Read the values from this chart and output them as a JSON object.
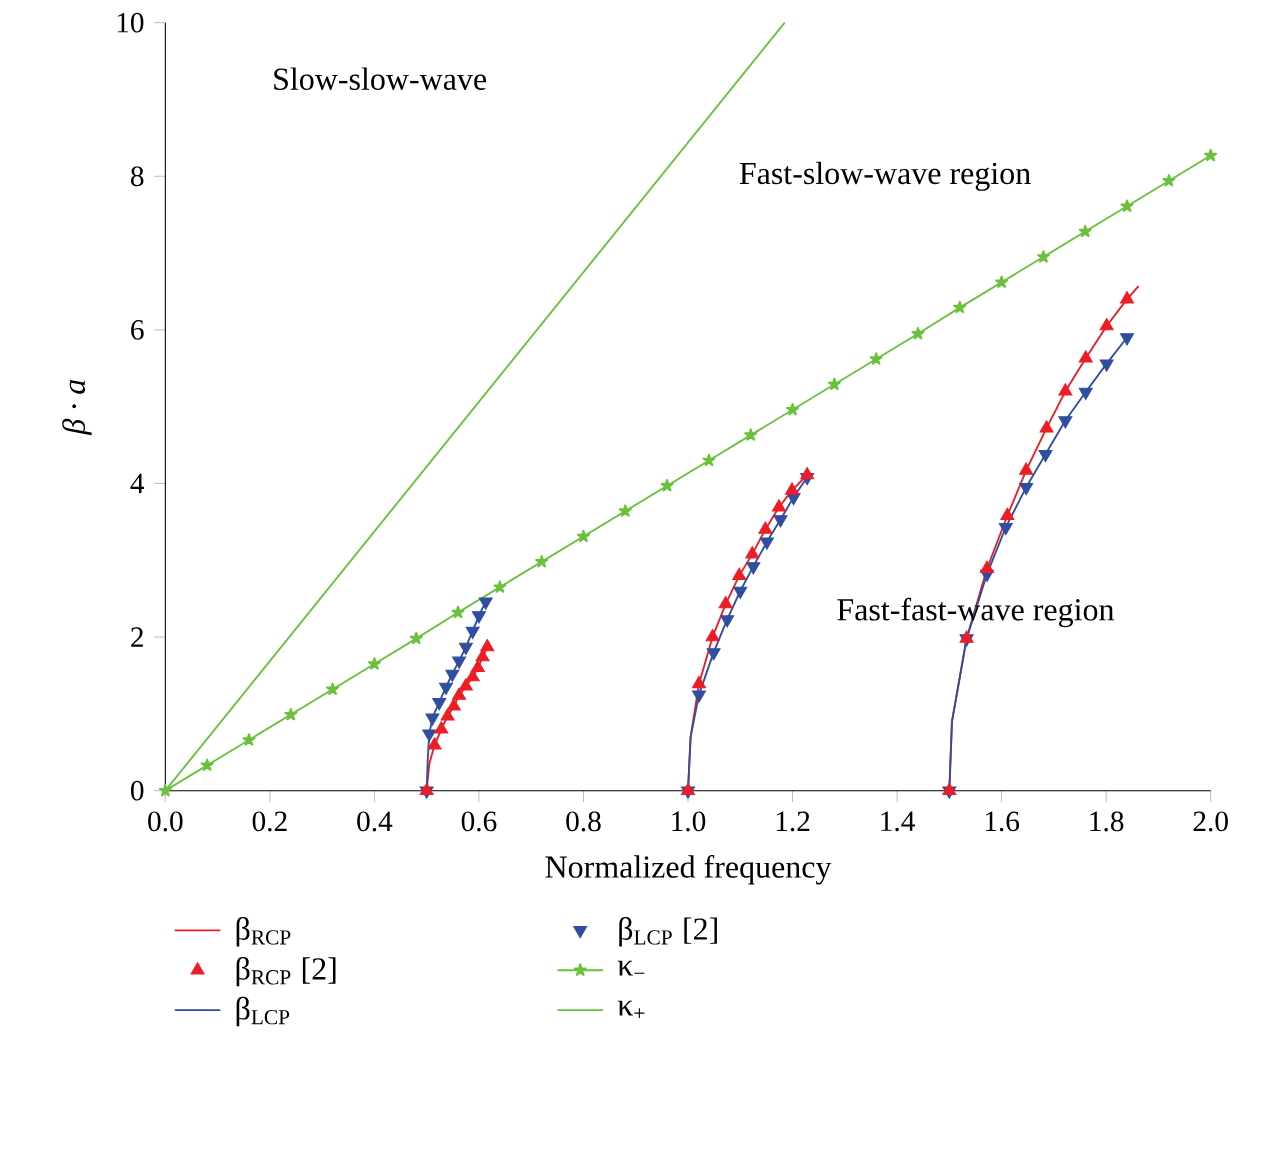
{
  "chart_data": {
    "type": "line",
    "xlabel": "Normalized frequency",
    "ylabel": "β · a",
    "xlim": [
      0,
      2
    ],
    "ylim": [
      0,
      10
    ],
    "xticks": [
      {
        "value": 0,
        "label": "0.0"
      },
      {
        "value": 0.2,
        "label": "0.2"
      },
      {
        "value": 0.4,
        "label": "0.4"
      },
      {
        "value": 0.6,
        "label": "0.6"
      },
      {
        "value": 0.8,
        "label": "0.8"
      },
      {
        "value": 1.0,
        "label": "1.0"
      },
      {
        "value": 1.2,
        "label": "1.2"
      },
      {
        "value": 1.4,
        "label": "1.4"
      },
      {
        "value": 1.6,
        "label": "1.6"
      },
      {
        "value": 1.8,
        "label": "1.8"
      },
      {
        "value": 2.0,
        "label": "2.0"
      }
    ],
    "yticks": [
      0,
      2,
      4,
      6,
      8,
      10
    ],
    "legend": "bottom",
    "annotations": [
      "Slow-slow-wave",
      "Fast-slow-wave region",
      "Fast-fast-wave region"
    ],
    "series": [
      {
        "name": "β$_{RCP}$",
        "type": "line",
        "color": "#ee1c25",
        "marker": "none",
        "x": [
          0.5,
          0.505,
          0.515,
          0.528,
          0.54,
          0.552,
          0.562,
          0.575,
          0.588,
          0.598,
          0.607,
          0.616,
          null,
          1.0,
          1.005,
          1.021,
          1.047,
          1.072,
          1.098,
          1.123,
          1.148,
          1.174,
          1.199,
          1.228,
          null,
          1.5,
          1.505,
          1.533,
          1.572,
          1.611,
          1.647,
          1.686,
          1.722,
          1.761,
          1.801,
          1.84,
          1.862
        ],
        "values": [
          0,
          0.35,
          0.59,
          0.8,
          0.97,
          1.1,
          1.24,
          1.36,
          1.48,
          1.6,
          1.74,
          1.87,
          null,
          0,
          0.7,
          1.39,
          2.0,
          2.43,
          2.8,
          3.08,
          3.4,
          3.69,
          3.91,
          4.11,
          null,
          0,
          0.9,
          1.98,
          2.89,
          3.58,
          4.17,
          4.72,
          5.2,
          5.63,
          6.05,
          6.4,
          6.57
        ]
      },
      {
        "name": "β$_{LCP}$ [2]",
        "type": "scatter",
        "color": "#2f4ea0",
        "marker": "triangle-down",
        "x": [
          0.5,
          0.505,
          0.511,
          0.524,
          0.537,
          0.549,
          0.562,
          0.575,
          0.588,
          0.6,
          0.613,
          1.0,
          1.021,
          1.049,
          1.075,
          1.1,
          1.125,
          1.151,
          1.177,
          1.202,
          1.228,
          1.5,
          1.533,
          1.572,
          1.608,
          1.647,
          1.684,
          1.722,
          1.761,
          1.801,
          1.84
        ],
        "values": [
          0,
          0.74,
          0.95,
          1.15,
          1.35,
          1.52,
          1.69,
          1.87,
          2.08,
          2.28,
          2.46,
          0,
          1.25,
          1.8,
          2.23,
          2.6,
          2.92,
          3.24,
          3.53,
          3.82,
          4.08,
          0,
          1.98,
          2.82,
          3.43,
          3.95,
          4.38,
          4.82,
          5.19,
          5.56,
          5.9
        ]
      },
      {
        "name": "β$_{RCP}$ [2]",
        "type": "scatter",
        "color": "#ee1c25",
        "marker": "triangle",
        "x": [
          0.5,
          0.515,
          0.528,
          0.54,
          0.552,
          0.562,
          0.575,
          0.588,
          0.598,
          0.607,
          0.616,
          1.0,
          1.021,
          1.047,
          1.072,
          1.098,
          1.123,
          1.148,
          1.174,
          1.199,
          1.228,
          1.5,
          1.533,
          1.572,
          1.611,
          1.647,
          1.686,
          1.722,
          1.761,
          1.801,
          1.84
        ],
        "values": [
          0,
          0.59,
          0.8,
          0.97,
          1.1,
          1.24,
          1.36,
          1.48,
          1.6,
          1.74,
          1.87,
          0,
          1.39,
          2.0,
          2.43,
          2.8,
          3.08,
          3.4,
          3.69,
          3.91,
          4.11,
          0,
          1.98,
          2.89,
          3.58,
          4.17,
          4.72,
          5.2,
          5.63,
          6.05,
          6.4
        ]
      },
      {
        "name": "κ$_{−}$",
        "type": "line",
        "color": "#6ac13c",
        "marker": "star",
        "x": [
          0,
          0.08,
          0.16,
          0.24,
          0.32,
          0.4,
          0.48,
          0.56,
          0.64,
          0.72,
          0.8,
          0.88,
          0.96,
          1.04,
          1.12,
          1.2,
          1.28,
          1.36,
          1.44,
          1.52,
          1.6,
          1.68,
          1.76,
          1.84,
          1.92,
          2.0
        ],
        "values": [
          0,
          0.33,
          0.66,
          0.99,
          1.32,
          1.65,
          1.98,
          2.32,
          2.65,
          2.98,
          3.31,
          3.64,
          3.97,
          4.3,
          4.63,
          4.96,
          5.29,
          5.62,
          5.95,
          6.29,
          6.62,
          6.95,
          7.28,
          7.61,
          7.94,
          8.27
        ]
      },
      {
        "name": "β$_{LCP}$",
        "type": "line",
        "color": "#2f4ea0",
        "marker": "none",
        "x": [
          0.5,
          0.502,
          0.505,
          0.511,
          0.524,
          0.537,
          0.549,
          0.562,
          0.575,
          0.588,
          0.6,
          0.613,
          null,
          1.0,
          1.005,
          1.021,
          1.049,
          1.075,
          1.1,
          1.125,
          1.151,
          1.177,
          1.202,
          1.228,
          null,
          1.5,
          1.505,
          1.533,
          1.572,
          1.608,
          1.647,
          1.684,
          1.722,
          1.761,
          1.801,
          1.84
        ],
        "values": [
          0,
          0.4,
          0.74,
          0.95,
          1.15,
          1.35,
          1.52,
          1.69,
          1.87,
          2.08,
          2.28,
          2.46,
          null,
          0,
          0.7,
          1.25,
          1.8,
          2.23,
          2.6,
          2.92,
          3.24,
          3.53,
          3.82,
          4.08,
          null,
          0,
          0.9,
          1.98,
          2.82,
          3.43,
          3.95,
          4.38,
          4.82,
          5.19,
          5.56,
          5.9
        ]
      },
      {
        "name": "κ$_{+}$",
        "type": "line",
        "color": "#6ac13c",
        "marker": "none",
        "x": [
          0,
          1.185
        ],
        "values": [
          0,
          10
        ]
      }
    ]
  }
}
